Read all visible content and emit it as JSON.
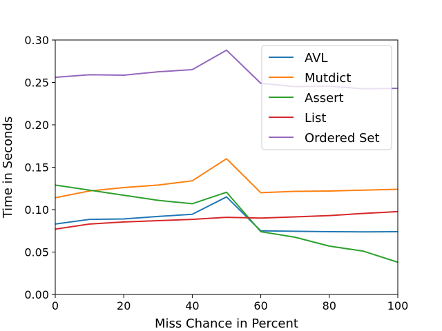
{
  "chart_data": {
    "type": "line",
    "xlabel": "Miss Chance in Percent",
    "ylabel": "Time in Seconds",
    "xlim": [
      0,
      100
    ],
    "ylim": [
      0,
      0.3
    ],
    "xticks": [
      0,
      20,
      40,
      60,
      80,
      100
    ],
    "yticks": [
      0.0,
      0.05,
      0.1,
      0.15,
      0.2,
      0.25,
      0.3
    ],
    "xtick_labels": [
      "0",
      "20",
      "40",
      "60",
      "80",
      "100"
    ],
    "ytick_labels": [
      "0.00",
      "0.05",
      "0.10",
      "0.15",
      "0.20",
      "0.25",
      "0.30"
    ],
    "grid": false,
    "legend_position": "top-right",
    "x": [
      0,
      10,
      20,
      30,
      40,
      50,
      60,
      70,
      80,
      90,
      100
    ],
    "series": [
      {
        "name": "AVL",
        "color": "#1f77b4",
        "values": [
          0.083,
          0.0885,
          0.089,
          0.092,
          0.0945,
          0.115,
          0.075,
          0.0745,
          0.074,
          0.0738,
          0.074
        ]
      },
      {
        "name": "Mutdict",
        "color": "#ff7f0e",
        "values": [
          0.114,
          0.122,
          0.126,
          0.129,
          0.134,
          0.16,
          0.12,
          0.1215,
          0.122,
          0.123,
          0.124
        ]
      },
      {
        "name": "Assert",
        "color": "#2ca02c",
        "values": [
          0.129,
          0.123,
          0.117,
          0.111,
          0.107,
          0.1205,
          0.074,
          0.0675,
          0.057,
          0.051,
          0.038
        ]
      },
      {
        "name": "List",
        "color": "#d62728",
        "values": [
          0.077,
          0.083,
          0.0855,
          0.087,
          0.0885,
          0.091,
          0.09,
          0.0915,
          0.093,
          0.0955,
          0.0977
        ]
      },
      {
        "name": "Ordered Set",
        "color": "#9467bd",
        "values": [
          0.256,
          0.259,
          0.2585,
          0.2625,
          0.265,
          0.288,
          0.249,
          0.245,
          0.2455,
          0.2425,
          0.243
        ]
      }
    ]
  }
}
